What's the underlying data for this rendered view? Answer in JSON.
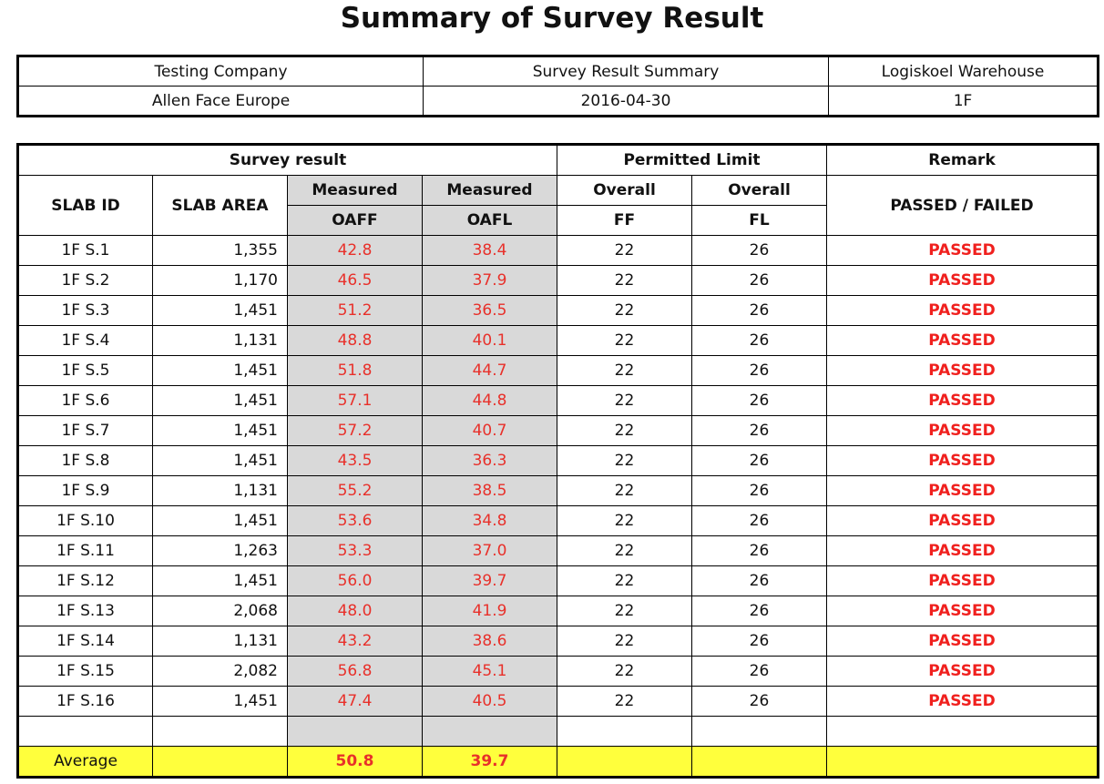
{
  "title": "Summary of Survey Result",
  "info": {
    "row1": [
      "Testing Company",
      "Survey Result Summary",
      "Logiskoel Warehouse"
    ],
    "row2": [
      "Allen Face Europe",
      "2016-04-30",
      "1F"
    ]
  },
  "headers": {
    "survey_result": "Survey result",
    "permitted_limit": "Permitted Limit",
    "remark": "Remark",
    "slab_id": "SLAB ID",
    "slab_area": "SLAB AREA",
    "measured": "Measured",
    "overall": "Overall",
    "oaff": "OAFF",
    "oafl": "OAFL",
    "ff": "FF",
    "fl": "FL",
    "passed_failed": "PASSED / FAILED"
  },
  "rows": [
    {
      "id": "1F S.1",
      "area": "1,355",
      "oaff": "42.8",
      "oafl": "38.4",
      "ff": "22",
      "fl": "26",
      "remark": "PASSED"
    },
    {
      "id": "1F S.2",
      "area": "1,170",
      "oaff": "46.5",
      "oafl": "37.9",
      "ff": "22",
      "fl": "26",
      "remark": "PASSED"
    },
    {
      "id": "1F S.3",
      "area": "1,451",
      "oaff": "51.2",
      "oafl": "36.5",
      "ff": "22",
      "fl": "26",
      "remark": "PASSED"
    },
    {
      "id": "1F S.4",
      "area": "1,131",
      "oaff": "48.8",
      "oafl": "40.1",
      "ff": "22",
      "fl": "26",
      "remark": "PASSED"
    },
    {
      "id": "1F S.5",
      "area": "1,451",
      "oaff": "51.8",
      "oafl": "44.7",
      "ff": "22",
      "fl": "26",
      "remark": "PASSED"
    },
    {
      "id": "1F S.6",
      "area": "1,451",
      "oaff": "57.1",
      "oafl": "44.8",
      "ff": "22",
      "fl": "26",
      "remark": "PASSED"
    },
    {
      "id": "1F S.7",
      "area": "1,451",
      "oaff": "57.2",
      "oafl": "40.7",
      "ff": "22",
      "fl": "26",
      "remark": "PASSED"
    },
    {
      "id": "1F S.8",
      "area": "1,451",
      "oaff": "43.5",
      "oafl": "36.3",
      "ff": "22",
      "fl": "26",
      "remark": "PASSED"
    },
    {
      "id": "1F S.9",
      "area": "1,131",
      "oaff": "55.2",
      "oafl": "38.5",
      "ff": "22",
      "fl": "26",
      "remark": "PASSED"
    },
    {
      "id": "1F S.10",
      "area": "1,451",
      "oaff": "53.6",
      "oafl": "34.8",
      "ff": "22",
      "fl": "26",
      "remark": "PASSED"
    },
    {
      "id": "1F S.11",
      "area": "1,263",
      "oaff": "53.3",
      "oafl": "37.0",
      "ff": "22",
      "fl": "26",
      "remark": "PASSED"
    },
    {
      "id": "1F S.12",
      "area": "1,451",
      "oaff": "56.0",
      "oafl": "39.7",
      "ff": "22",
      "fl": "26",
      "remark": "PASSED"
    },
    {
      "id": "1F S.13",
      "area": "2,068",
      "oaff": "48.0",
      "oafl": "41.9",
      "ff": "22",
      "fl": "26",
      "remark": "PASSED"
    },
    {
      "id": "1F S.14",
      "area": "1,131",
      "oaff": "43.2",
      "oafl": "38.6",
      "ff": "22",
      "fl": "26",
      "remark": "PASSED"
    },
    {
      "id": "1F S.15",
      "area": "2,082",
      "oaff": "56.8",
      "oafl": "45.1",
      "ff": "22",
      "fl": "26",
      "remark": "PASSED"
    },
    {
      "id": "1F S.16",
      "area": "1,451",
      "oaff": "47.4",
      "oafl": "40.5",
      "ff": "22",
      "fl": "26",
      "remark": "PASSED"
    }
  ],
  "average": {
    "label": "Average",
    "oaff": "50.8",
    "oafl": "39.7"
  },
  "colors": {
    "measured_bg": "#d9d9d9",
    "value_red": "#e8302a",
    "average_bg": "#ffff3c"
  }
}
